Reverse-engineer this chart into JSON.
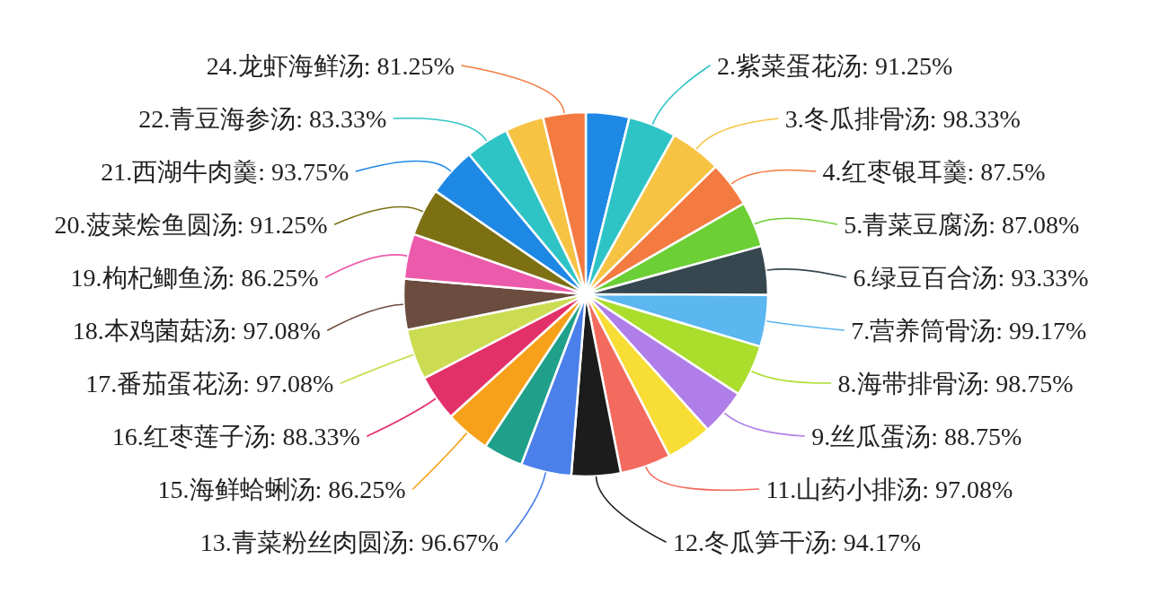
{
  "chart_data": {
    "type": "pie",
    "categories": [
      null,
      "2.紫菜蛋花汤",
      "3.冬瓜排骨汤",
      "4.红枣银耳羹",
      "5.青菜豆腐汤",
      "6.绿豆百合汤",
      "7.营养筒骨汤",
      "8.海带排骨汤",
      "9.丝瓜蛋汤",
      null,
      "11.山药小排汤",
      "12.冬瓜笋干汤",
      "13.青菜粉丝肉圆汤",
      null,
      "15.海鲜蛤蜊汤",
      "16.红枣莲子汤",
      "17.番茄蛋花汤",
      "18.本鸡菌菇汤",
      "19.枸杞鲫鱼汤",
      "20.菠菜烩鱼圆汤",
      "21.西湖牛肉羹",
      "22.青豆海参汤",
      null,
      "24.龙虾海鲜汤"
    ],
    "values": [
      83,
      91.25,
      98.33,
      87.5,
      87.08,
      93.33,
      99.17,
      98.75,
      88.75,
      88,
      97.08,
      94.17,
      96.67,
      76,
      86.25,
      88.33,
      97.08,
      97.08,
      86.25,
      91.25,
      93.75,
      83.33,
      74,
      81.25
    ],
    "value_labels": [
      null,
      "91.25%",
      "98.33%",
      "87.5%",
      "87.08%",
      "93.33%",
      "99.17%",
      "98.75%",
      "88.75%",
      null,
      "97.08%",
      "94.17%",
      "96.67%",
      null,
      "86.25%",
      "88.33%",
      "97.08%",
      "97.08%",
      "86.25%",
      "91.25%",
      "93.75%",
      "83.33%",
      null,
      "81.25%"
    ],
    "colors": [
      "#1e88e5",
      "#2ec4c6",
      "#f6c343",
      "#f37a40",
      "#6ccf35",
      "#37474f",
      "#5cb6f0",
      "#aadd2c",
      "#b07ee8",
      "#f8dd35",
      "#f26b5e",
      "#1c1c1c",
      "#4b80ea",
      "#20a08a",
      "#f7a11a",
      "#e2316a",
      "#cbdc52",
      "#6b4c3e",
      "#ec5aab",
      "#7c7013",
      "#1e88e5",
      "#2ec4c6",
      "#f6c343",
      "#f37a40"
    ]
  }
}
